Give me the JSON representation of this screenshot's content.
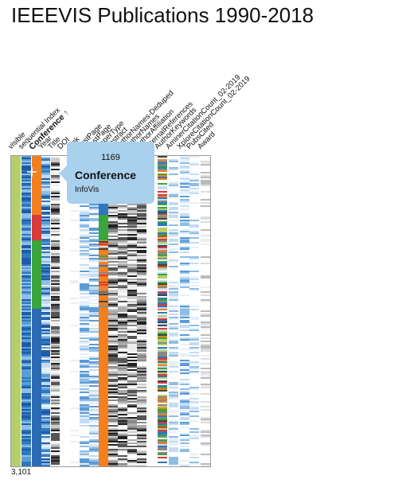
{
  "title": "IEEEVIS Publications 1990-2018",
  "columns": [
    {
      "label": "visible",
      "bold": false
    },
    {
      "label": "sequential Index",
      "bold": false
    },
    {
      "label": "Conference ↑",
      "bold": true
    },
    {
      "label": "Year",
      "bold": false
    },
    {
      "label": "Title",
      "bold": false
    },
    {
      "label": "DOI",
      "bold": false
    },
    {
      "label": "Link",
      "bold": false
    },
    {
      "label": "FirstPage",
      "bold": false
    },
    {
      "label": "LastPage",
      "bold": false
    },
    {
      "label": "PaperType",
      "bold": false
    },
    {
      "label": "Abstract",
      "bold": false
    },
    {
      "label": "AuthorNames-Deduped",
      "bold": false
    },
    {
      "label": "AuthorNames",
      "bold": false
    },
    {
      "label": "AuthorAffiliation",
      "bold": false
    },
    {
      "label": "InternalReferences",
      "bold": false
    },
    {
      "label": "AuthorKeywords",
      "bold": false
    },
    {
      "label": "AminerCitationCount_02-2019",
      "bold": false
    },
    {
      "label": "XploreCitationCount_02-2019",
      "bold": false
    },
    {
      "label": "PubsCited",
      "bold": false
    },
    {
      "label": "Award",
      "bold": false
    }
  ],
  "tooltip": {
    "count": "1169",
    "column": "Conference",
    "value": "InfoVis"
  },
  "row_count": "3,101",
  "colors": {
    "visible": "#b5d06a",
    "infovis": "#f47f1e",
    "scivis": "#d93a3a",
    "vast": "#3aa53a",
    "vis": "#2c6bb3",
    "tooltip": "#a9d0ec"
  }
}
